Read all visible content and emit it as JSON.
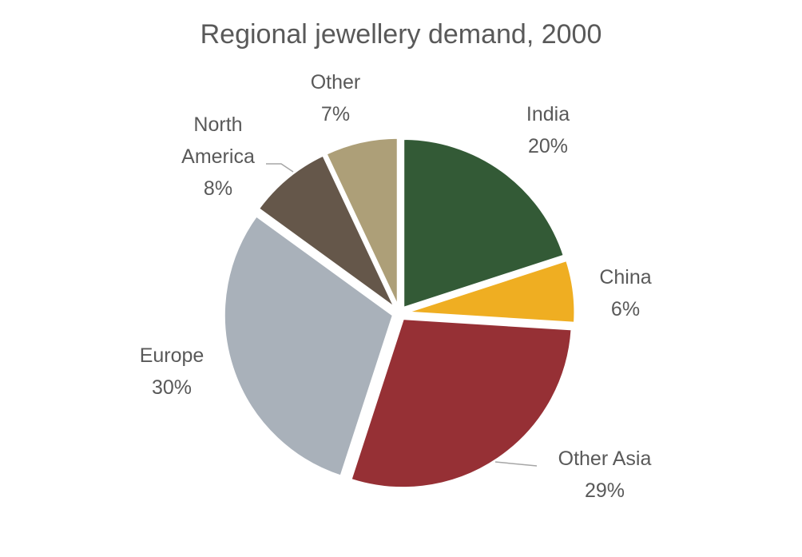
{
  "chart_data": {
    "type": "pie",
    "title": "Regional jewellery demand, 2000",
    "categories": [
      "India",
      "China",
      "Other Asia",
      "Europe",
      "North America",
      "Other"
    ],
    "values": [
      20,
      6,
      29,
      30,
      8,
      7
    ],
    "value_labels": [
      "20%",
      "6%",
      "29%",
      "30%",
      "8%",
      "7%"
    ],
    "colors": [
      "#335a36",
      "#efae22",
      "#963035",
      "#a9b1ba",
      "#65574a",
      "#ad9f78"
    ]
  }
}
